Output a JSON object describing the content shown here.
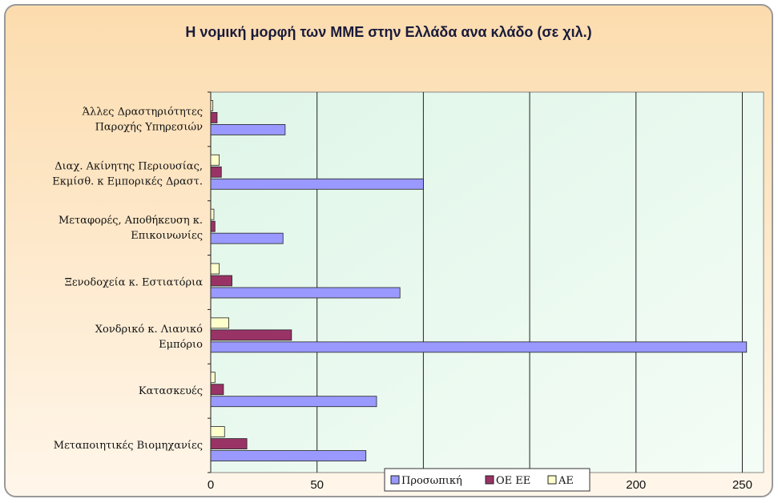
{
  "chart_data": {
    "type": "bar",
    "orientation": "horizontal",
    "title": "Η νομική μορφή των ΜΜΕ στην Ελλάδα ανα κλάδο (σε χιλ.)",
    "categories": [
      "Άλλες Δραστηριότητες\nΠαροχής Υπηρεσιών",
      "Διαχ. Ακίνητης Περιουσίας,\nΕκμίσθ. κ Εμπορικές Δραστ.",
      "Μεταφορές, Αποθήκευση κ.\nΕπικοινωνίες",
      "Ξενοδοχεία κ. Εστιατόρια",
      "Χονδρικό κ. Λιανικό\nΕμπόριο",
      "Κατασκευές",
      "Μεταποιητικές Βιομηχανίες"
    ],
    "series": [
      {
        "name": "Προσωπική",
        "color": "#9999ff",
        "values": [
          35,
          100,
          34,
          89,
          252,
          78,
          73
        ]
      },
      {
        "name": "ΟΕ ΕΕ",
        "color": "#993366",
        "values": [
          3,
          5,
          2,
          10,
          38,
          6,
          17
        ]
      },
      {
        "name": "ΑΕ",
        "color": "#ffffcc",
        "values": [
          1,
          4,
          1.5,
          4,
          8.5,
          2,
          6.5
        ]
      }
    ],
    "xlim": [
      0,
      260
    ],
    "xticks": [
      0,
      50,
      100,
      150,
      200,
      250
    ],
    "grid": true,
    "legend": "bottom"
  }
}
